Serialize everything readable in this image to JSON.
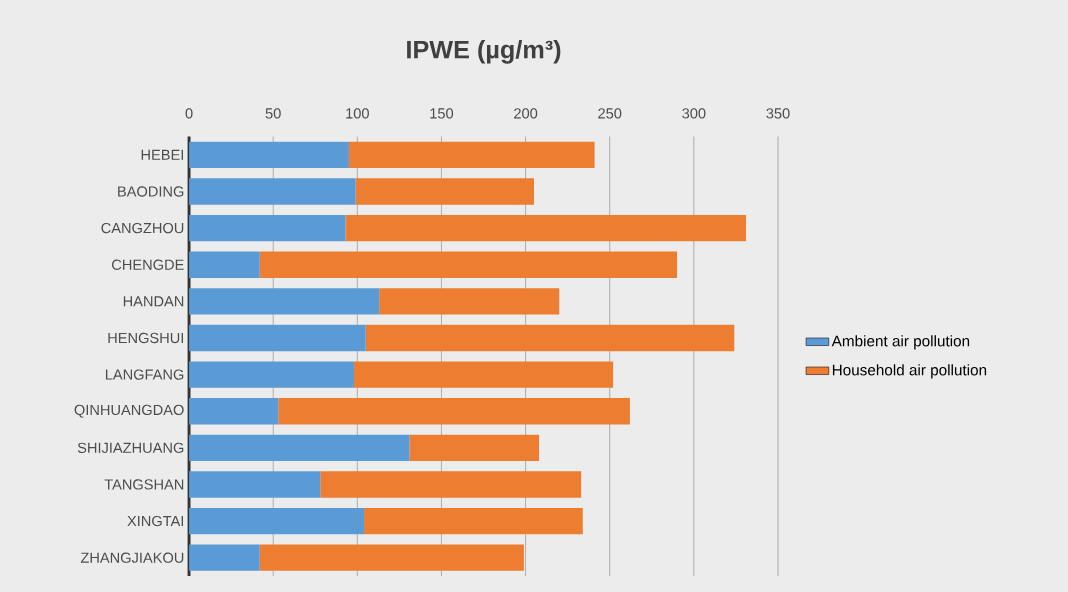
{
  "chart_data": {
    "type": "bar",
    "orientation": "horizontal",
    "stacked": true,
    "title": "IPWE (µg/m³)",
    "categories": [
      "HEBEI",
      "BAODING",
      "CANGZHOU",
      "CHENGDE",
      "HANDAN",
      "HENGSHUI",
      "LANGFANG",
      "QINHUANGDAO",
      "SHIJIAZHUANG",
      "TANGSHAN",
      "XINGTAI",
      "ZHANGJIAKOU"
    ],
    "series": [
      {
        "name": "Ambient air pollution",
        "color": "#5b9bd5",
        "values": [
          95,
          99,
          93,
          42,
          113,
          105,
          98,
          53,
          131,
          78,
          104,
          42
        ]
      },
      {
        "name": "Household air pollution",
        "color": "#ed7d31",
        "values": [
          146,
          106,
          238,
          248,
          107,
          219,
          154,
          209,
          77,
          155,
          130,
          157
        ]
      }
    ],
    "xlim": [
      0,
      350
    ],
    "xticks": [
      0,
      50,
      100,
      150,
      200,
      250,
      300,
      350
    ],
    "grid": "x",
    "legend": "right"
  }
}
